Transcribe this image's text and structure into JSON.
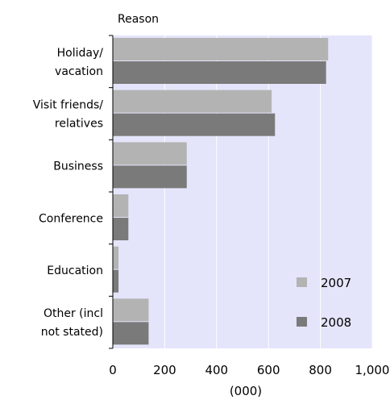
{
  "chart_data": {
    "type": "bar",
    "orientation": "horizontal",
    "ylabel": "Reason",
    "xlabel": "(000)",
    "categories": [
      [
        "Holiday/",
        "vacation"
      ],
      [
        "Visit friends/",
        "relatives"
      ],
      [
        "Business"
      ],
      [
        "Conference"
      ],
      [
        "Education"
      ],
      [
        "Other (incl",
        "not stated)"
      ]
    ],
    "series": [
      {
        "name": "2007",
        "color": "#b3b3b3",
        "values": [
          830,
          612,
          285,
          60,
          22,
          138
        ]
      },
      {
        "name": "2008",
        "color": "#7a7a7a",
        "values": [
          822,
          625,
          285,
          60,
          22,
          138
        ]
      }
    ],
    "xlim": [
      0,
      1000
    ],
    "x_ticks": [
      "0",
      "200",
      "400",
      "600",
      "800",
      "1,000"
    ],
    "x_tick_values": [
      0,
      200,
      400,
      600,
      800,
      1000
    ],
    "grid": true,
    "legend_placement": "bottom-right",
    "plot_background": "#e4e4fb",
    "gridline_color": "#ffffff"
  }
}
